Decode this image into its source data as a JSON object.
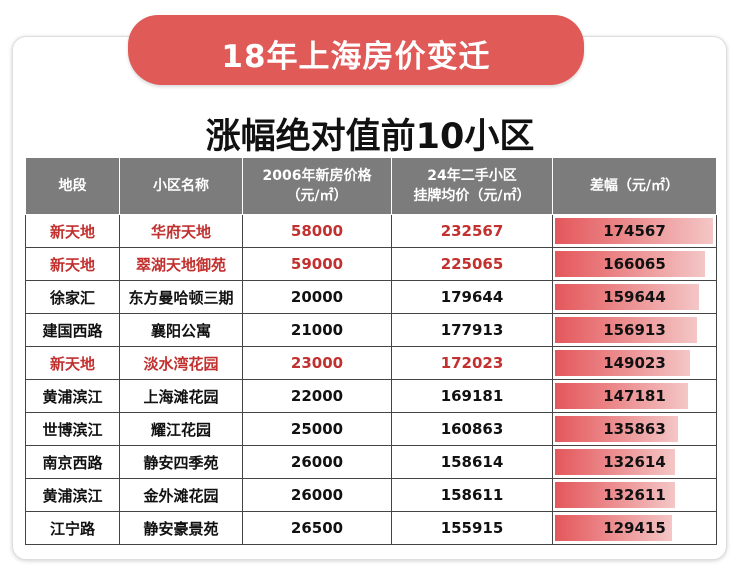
{
  "banner": {
    "title": "18年上海房价变迁"
  },
  "subtitle": "涨幅绝对值前10小区",
  "headers": [
    "地段",
    "小区名称",
    "2006年新房价格\n（元/㎡）",
    "24年二手小区\n挂牌均价（元/㎡）",
    "差幅（元/㎡）"
  ],
  "rows": [
    {
      "area": "新天地",
      "name": "华府天地",
      "p2006": "58000",
      "p2024": "232567",
      "diff": "174567",
      "highlight": true
    },
    {
      "area": "新天地",
      "name": "翠湖天地御苑",
      "p2006": "59000",
      "p2024": "225065",
      "diff": "166065",
      "highlight": true
    },
    {
      "area": "徐家汇",
      "name": "东方曼哈顿三期",
      "p2006": "20000",
      "p2024": "179644",
      "diff": "159644",
      "highlight": false
    },
    {
      "area": "建国西路",
      "name": "襄阳公寓",
      "p2006": "21000",
      "p2024": "177913",
      "diff": "156913",
      "highlight": false
    },
    {
      "area": "新天地",
      "name": "淡水湾花园",
      "p2006": "23000",
      "p2024": "172023",
      "diff": "149023",
      "highlight": true
    },
    {
      "area": "黄浦滨江",
      "name": "上海滩花园",
      "p2006": "22000",
      "p2024": "169181",
      "diff": "147181",
      "highlight": false
    },
    {
      "area": "世博滨江",
      "name": "耀江花园",
      "p2006": "25000",
      "p2024": "160863",
      "diff": "135863",
      "highlight": false
    },
    {
      "area": "南京西路",
      "name": "静安四季苑",
      "p2006": "26000",
      "p2024": "158614",
      "diff": "132614",
      "highlight": false
    },
    {
      "area": "黄浦滨江",
      "name": "金外滩花园",
      "p2006": "26000",
      "p2024": "158611",
      "diff": "132611",
      "highlight": false
    },
    {
      "area": "江宁路",
      "name": "静安豪景苑",
      "p2006": "26500",
      "p2024": "155915",
      "diff": "129415",
      "highlight": false
    }
  ],
  "colors": {
    "accent": "#e05a58",
    "highlight_text": "#c2312f",
    "header_bg": "#7c7c7c",
    "bar_start": "#e4575b",
    "bar_end": "#f4c6c6"
  }
}
